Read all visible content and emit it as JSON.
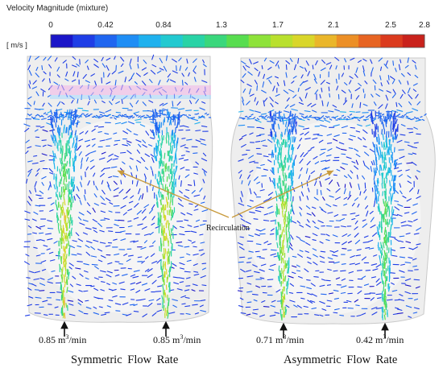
{
  "colorbar": {
    "title": "Velocity Magnitude (mixture)",
    "units": "[ m/s ]",
    "ticks": [
      "0",
      "0.42",
      "0.84",
      "1.3",
      "1.7",
      "2.1",
      "2.5",
      "2.8"
    ],
    "min": 0,
    "max": 2.8,
    "colors": [
      "#1b16c8",
      "#1f3ee6",
      "#2066f0",
      "#1f8ef5",
      "#1fb1ee",
      "#22c9d0",
      "#29d3a6",
      "#3ad77c",
      "#58dd4f",
      "#8ee23a",
      "#b9e02e",
      "#d9d62a",
      "#eab62a",
      "#ec8f26",
      "#e76422",
      "#db3b1e",
      "#c9221c"
    ]
  },
  "annotation": {
    "label": "Recirculation",
    "arrow_color": "#c89a3c"
  },
  "panels": [
    {
      "caption": "Symmetric  Flow Rate",
      "inlets": [
        {
          "value": "0.85",
          "unit_base": "m",
          "unit_exp": "3",
          "unit_tail": "/min",
          "jet_peak_velocity": 2.1
        },
        {
          "value": "0.85",
          "unit_base": "m",
          "unit_exp": "3",
          "unit_tail": "/min",
          "jet_peak_velocity": 2.1
        }
      ]
    },
    {
      "caption": "Asymmetric  Flow Rate",
      "inlets": [
        {
          "value": "0.71",
          "unit_base": "m",
          "unit_exp": "3",
          "unit_tail": "/min",
          "jet_peak_velocity": 1.9
        },
        {
          "value": "0.42",
          "unit_base": "m",
          "unit_exp": "3",
          "unit_tail": "/min",
          "jet_peak_velocity": 1.5
        }
      ]
    }
  ],
  "colors": {
    "vector_low": "#2a22d6",
    "vessel_fill": "#eeeeee",
    "vessel_edge": "#c9c9c9"
  }
}
